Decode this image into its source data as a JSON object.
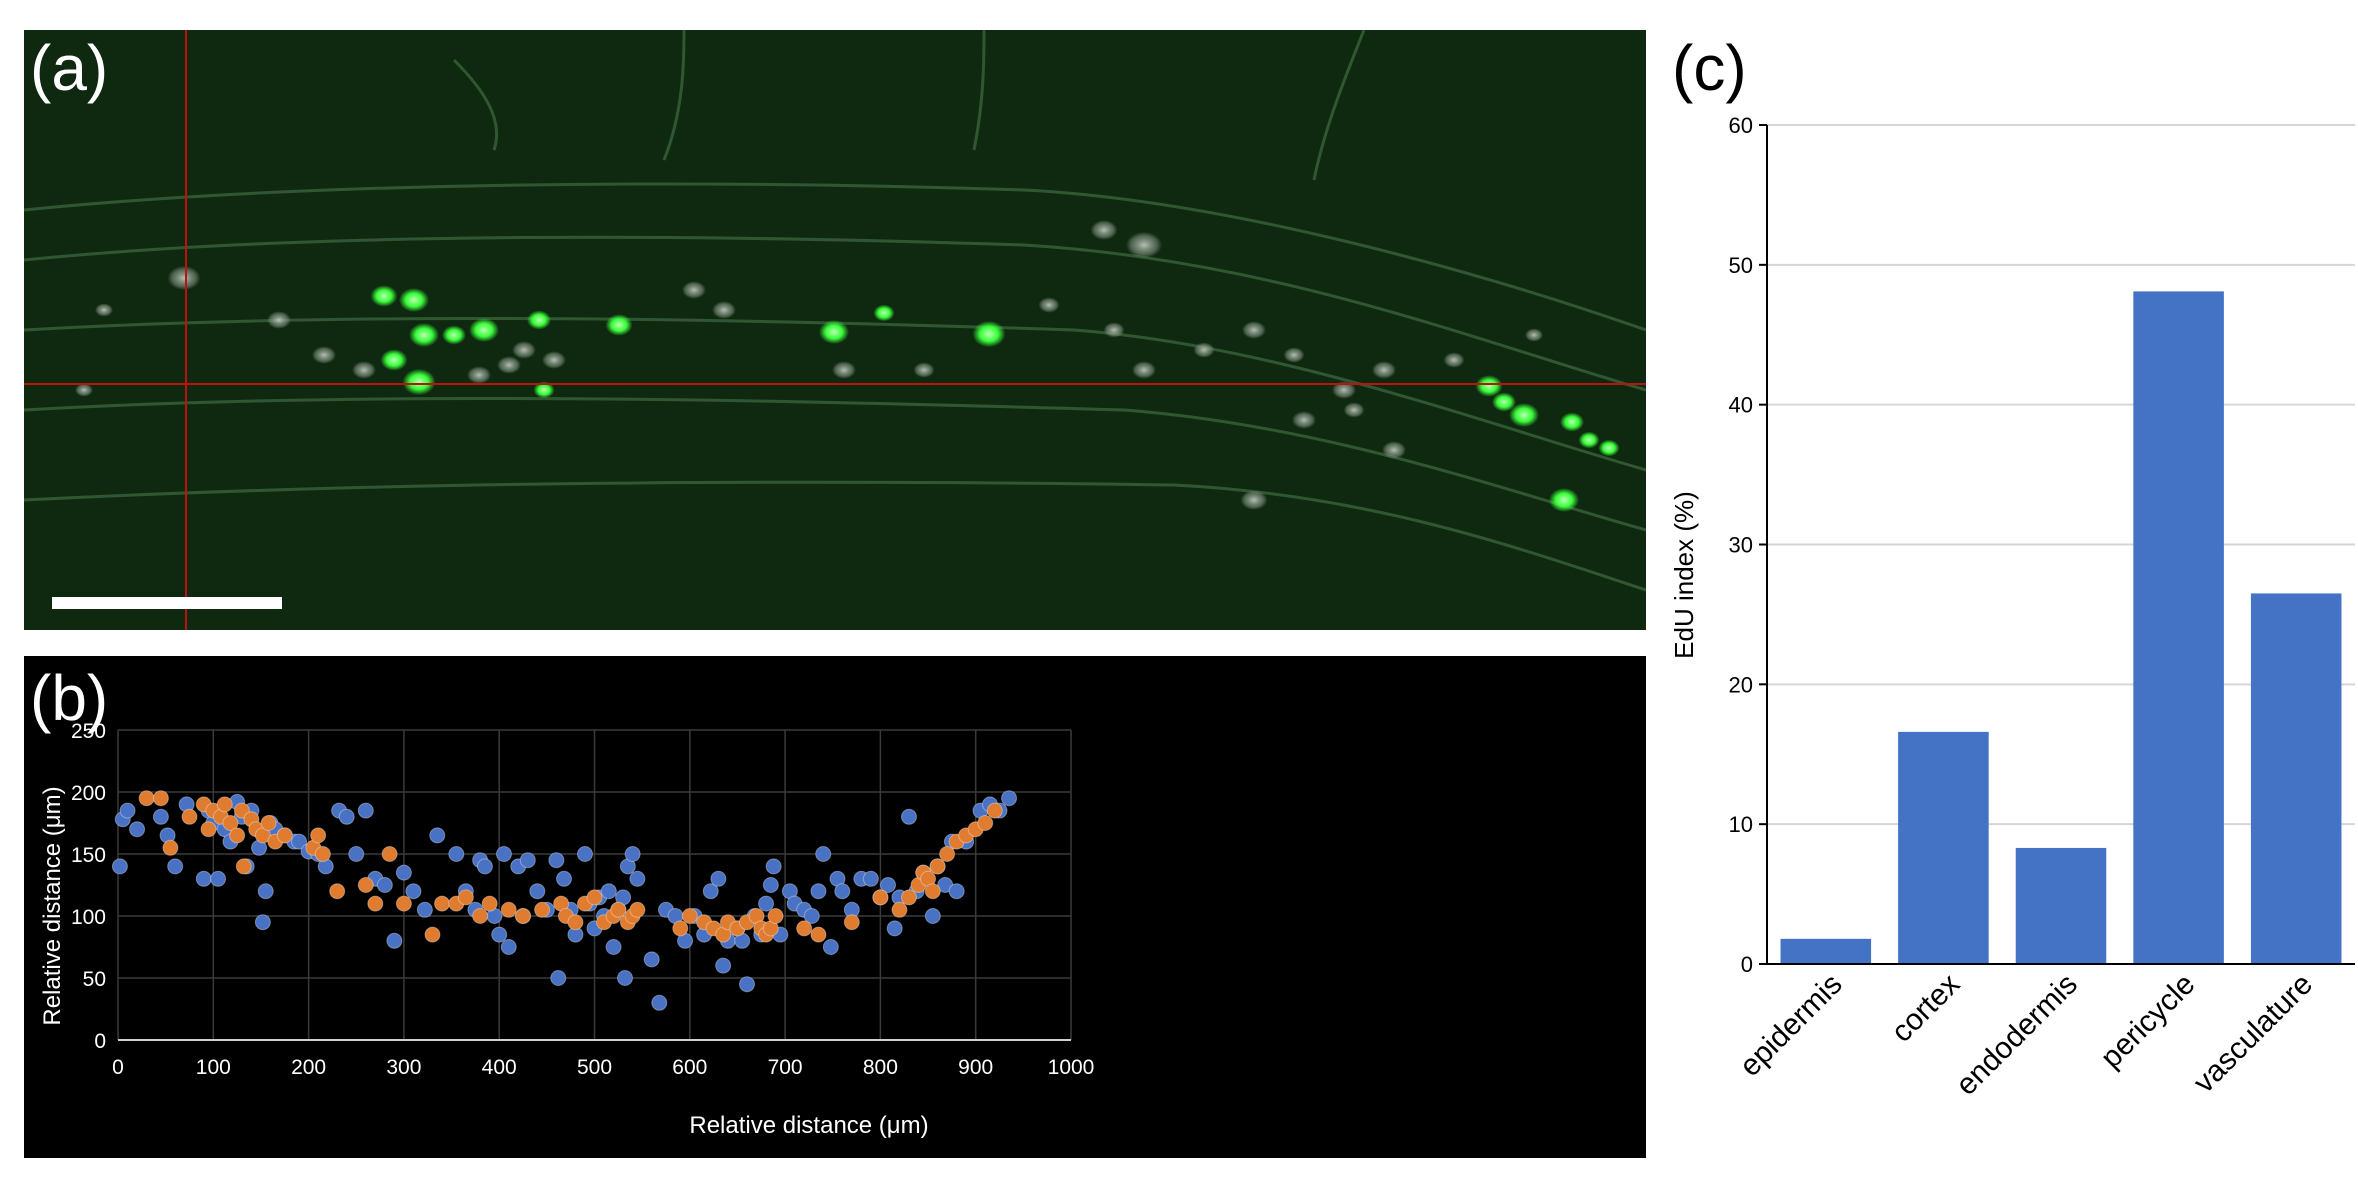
{
  "panels": {
    "a": {
      "label": "(a)"
    },
    "b": {
      "label": "(b)"
    },
    "c": {
      "label": "(c)"
    }
  },
  "colors": {
    "micro_bg": "#0f2910",
    "crosshair": "#c01010",
    "nucleus_bright": "#39ff3a",
    "nucleus_dim": "#9aa59a",
    "scatter_blue": "#4a72c4",
    "scatter_orange": "#e07c30",
    "bar_fill": "#4472c4"
  },
  "chart_data": [
    {
      "type": "scatter",
      "panel": "b",
      "xlabel": "Relative distance (μm)",
      "ylabel": "Relative distance (μm)",
      "xlim": [
        0,
        1000
      ],
      "ylim": [
        0,
        250
      ],
      "xticks": [
        "0",
        "100",
        "200",
        "300",
        "400",
        "500",
        "600",
        "700",
        "800",
        "900",
        "1000"
      ],
      "yticks": [
        "0",
        "50",
        "100",
        "150",
        "200",
        "250"
      ],
      "grid": true,
      "series": [
        {
          "name": "blue",
          "color": "#4a72c4",
          "x": [
            2,
            5,
            10,
            20,
            45,
            52,
            60,
            72,
            90,
            95,
            100,
            105,
            112,
            118,
            125,
            130,
            135,
            140,
            148,
            152,
            155,
            160,
            165,
            175,
            185,
            190,
            200,
            210,
            218,
            232,
            240,
            250,
            260,
            270,
            280,
            290,
            300,
            310,
            322,
            335,
            355,
            365,
            375,
            380,
            385,
            395,
            400,
            405,
            410,
            420,
            425,
            430,
            440,
            450,
            460,
            462,
            468,
            475,
            480,
            490,
            495,
            500,
            505,
            510,
            515,
            520,
            525,
            530,
            532,
            535,
            540,
            545,
            560,
            568,
            575,
            585,
            595,
            605,
            615,
            622,
            630,
            635,
            640,
            650,
            655,
            660,
            668,
            675,
            680,
            685,
            688,
            695,
            705,
            710,
            720,
            728,
            735,
            740,
            748,
            755,
            760,
            770,
            780,
            790,
            800,
            808,
            815,
            820,
            830,
            838,
            845,
            855,
            860,
            868,
            875,
            880,
            890,
            905,
            915,
            925,
            935
          ],
          "y": [
            140,
            178,
            185,
            170,
            180,
            165,
            140,
            190,
            130,
            185,
            175,
            130,
            170,
            160,
            192,
            180,
            140,
            185,
            155,
            95,
            120,
            175,
            170,
            165,
            160,
            160,
            152,
            150,
            140,
            185,
            180,
            150,
            185,
            130,
            125,
            80,
            135,
            120,
            105,
            165,
            150,
            120,
            105,
            145,
            140,
            100,
            85,
            150,
            75,
            140,
            100,
            145,
            120,
            105,
            145,
            50,
            130,
            105,
            85,
            150,
            110,
            90,
            115,
            100,
            120,
            75,
            105,
            115,
            50,
            140,
            150,
            130,
            65,
            30,
            105,
            100,
            80,
            100,
            85,
            120,
            130,
            60,
            80,
            90,
            80,
            45,
            100,
            85,
            110,
            125,
            140,
            85,
            120,
            110,
            105,
            100,
            120,
            150,
            75,
            130,
            120,
            105,
            130,
            130,
            115,
            125,
            90,
            115,
            180,
            120,
            135,
            100,
            140,
            125,
            160,
            120,
            160,
            185,
            190,
            185,
            195
          ]
        },
        {
          "name": "orange",
          "color": "#e07c30",
          "x": [
            30,
            45,
            55,
            75,
            90,
            95,
            100,
            108,
            112,
            118,
            125,
            130,
            132,
            140,
            145,
            152,
            158,
            165,
            175,
            205,
            210,
            215,
            230,
            260,
            270,
            285,
            300,
            330,
            340,
            355,
            365,
            380,
            390,
            410,
            425,
            445,
            465,
            470,
            480,
            490,
            500,
            510,
            520,
            525,
            535,
            540,
            545,
            590,
            600,
            615,
            625,
            635,
            640,
            650,
            660,
            670,
            675,
            680,
            685,
            690,
            720,
            735,
            770,
            800,
            820,
            830,
            840,
            845,
            850,
            855,
            860,
            870,
            880,
            890,
            900,
            910,
            920
          ],
          "y": [
            195,
            195,
            155,
            180,
            190,
            170,
            185,
            180,
            190,
            175,
            165,
            185,
            140,
            178,
            170,
            165,
            175,
            160,
            165,
            155,
            165,
            150,
            120,
            125,
            110,
            150,
            110,
            85,
            110,
            110,
            115,
            100,
            110,
            105,
            100,
            105,
            110,
            100,
            95,
            110,
            115,
            95,
            100,
            105,
            95,
            100,
            105,
            90,
            100,
            95,
            90,
            85,
            95,
            90,
            95,
            100,
            90,
            85,
            90,
            100,
            90,
            85,
            95,
            115,
            105,
            115,
            125,
            135,
            130,
            120,
            140,
            150,
            160,
            165,
            170,
            175,
            185
          ]
        }
      ]
    },
    {
      "type": "bar",
      "panel": "c",
      "ylabel": "EdU index (%)",
      "ylim": [
        0,
        60
      ],
      "yticks": [
        "0",
        "10",
        "20",
        "30",
        "40",
        "50",
        "60"
      ],
      "grid": true,
      "categories": [
        "epidermis",
        "cortex",
        "endodermis",
        "pericycle",
        "vasculature"
      ],
      "values": [
        1.8,
        16.6,
        8.3,
        48.1,
        26.5
      ]
    }
  ]
}
